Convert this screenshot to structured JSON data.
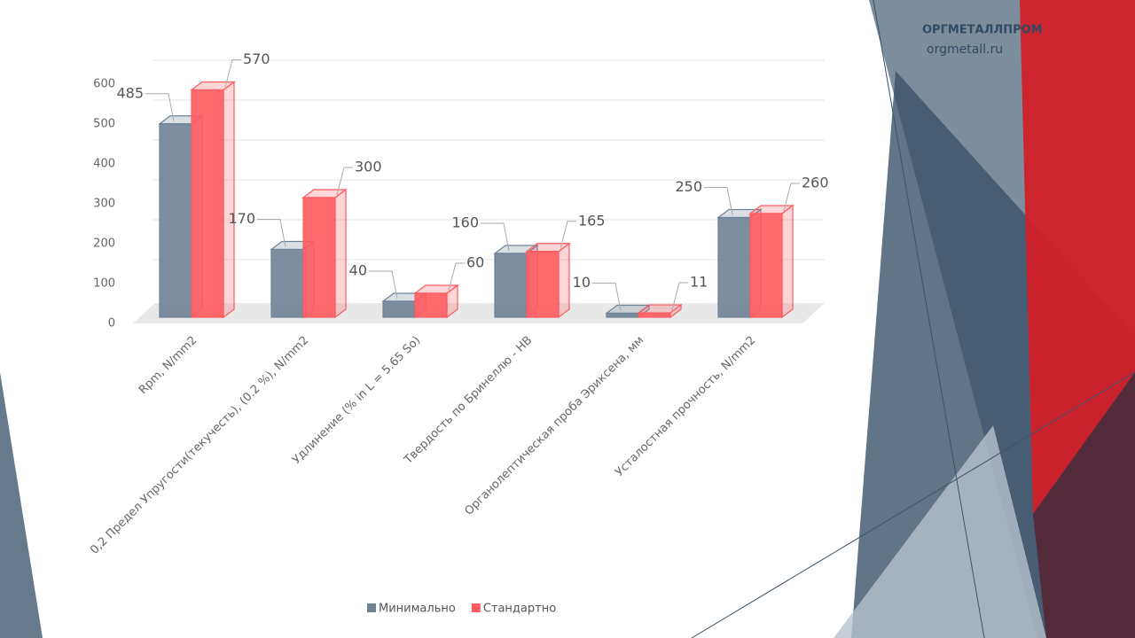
{
  "brand": {
    "name": "ОРГМЕТАЛЛПРОМ",
    "site": "orgmetall.ru"
  },
  "chart_data": {
    "type": "bar3d",
    "categories": [
      "Rpm, N/mm2",
      "0,2 Предел Упругости(текучесть), (0.2 %), N/mm2",
      "Удлинение (% in L = 5.65 So)",
      "Твердость по Бринеллю - HB",
      "Органолептическая проба Эриксена, мм",
      "Усталостная прочность, N/mm2"
    ],
    "series": [
      {
        "name": "Минимально",
        "color": "#6e8296",
        "values": [
          485,
          170,
          40,
          160,
          10,
          250
        ]
      },
      {
        "name": "Стандартно",
        "color": "#ff5a5f",
        "values": [
          570,
          300,
          60,
          165,
          11,
          260
        ]
      }
    ],
    "ylim": [
      0,
      600
    ],
    "yticks": [
      0,
      100,
      200,
      300,
      400,
      500,
      600
    ],
    "grid": true,
    "legend": "bottom"
  }
}
